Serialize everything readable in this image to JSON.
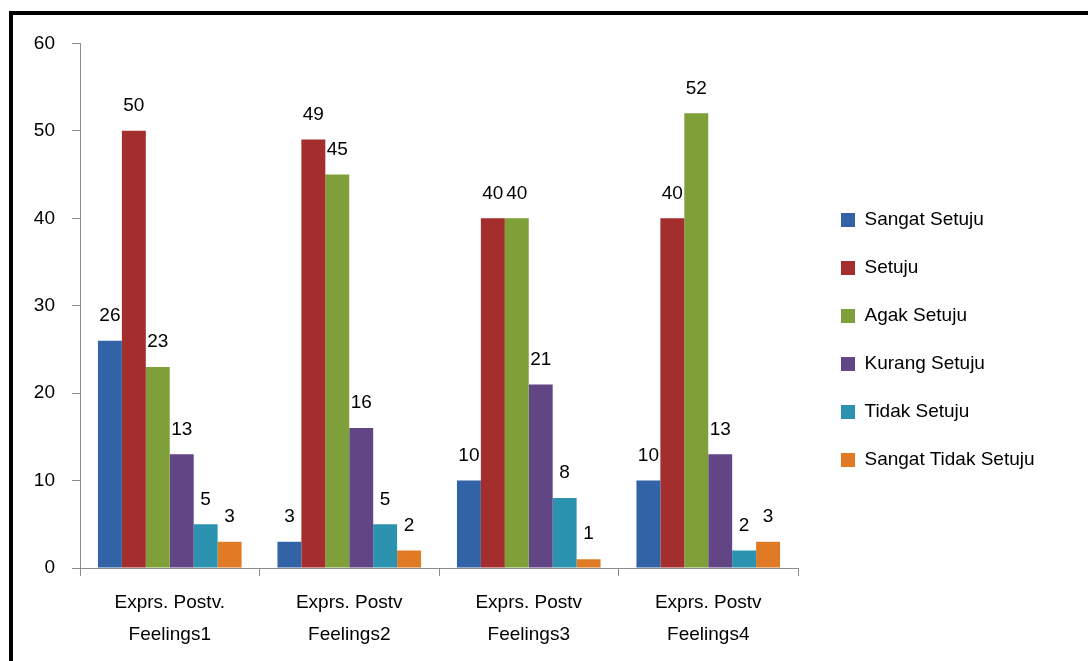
{
  "chart_data": {
    "type": "bar",
    "categories": [
      "Exprs. Postv. Feelings1",
      "Exprs. Postv Feelings2",
      "Exprs. Postv Feelings3",
      "Exprs. Postv Feelings4"
    ],
    "series": [
      {
        "name": "Sangat Setuju",
        "color": "#3163a6",
        "values": [
          26,
          3,
          10,
          10
        ]
      },
      {
        "name": "Setuju",
        "color": "#a32e2d",
        "values": [
          50,
          49,
          40,
          40
        ]
      },
      {
        "name": "Agak Setuju",
        "color": "#7f9f38",
        "values": [
          23,
          45,
          40,
          52
        ]
      },
      {
        "name": "Kurang Setuju",
        "color": "#614585",
        "values": [
          13,
          16,
          21,
          13
        ]
      },
      {
        "name": "Tidak Setuju",
        "color": "#2b93b0",
        "values": [
          5,
          5,
          8,
          2
        ]
      },
      {
        "name": "Sangat Tidak Setuju",
        "color": "#e07a24",
        "values": [
          3,
          2,
          1,
          3
        ]
      }
    ],
    "ylim": [
      0,
      60
    ],
    "yticks": [
      0,
      10,
      20,
      30,
      40,
      50,
      60
    ],
    "legend": "right",
    "data_labels": true
  }
}
